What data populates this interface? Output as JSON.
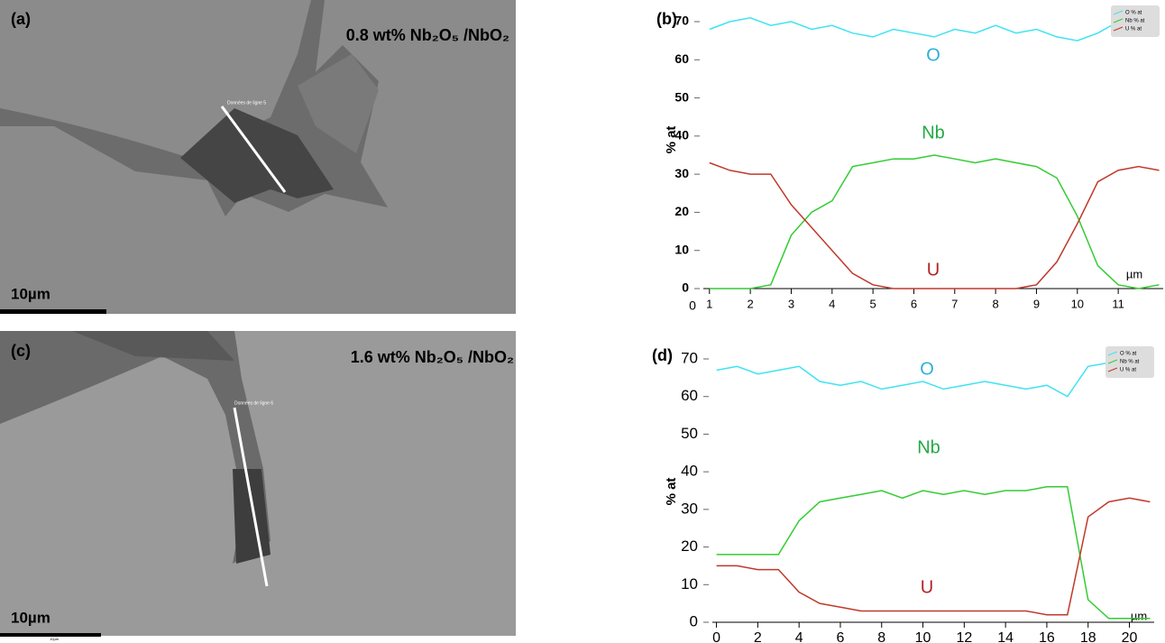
{
  "images": [
    {
      "label": "(a)",
      "title": "0.8 wt% Nb₂O₅ /NbO₂",
      "line_label": "Données de ligne 5",
      "scale": "10µm"
    },
    {
      "label": "(c)",
      "title": "1.6 wt% Nb₂O₅ /NbO₂",
      "line_label": "Données de ligne 6",
      "scale": "10µm",
      "scale_small": "10µm"
    }
  ],
  "chart_data": [
    {
      "type": "line",
      "panel_label": "(b)",
      "ylabel": "% at",
      "x_unit": "µm",
      "origin_label": "0",
      "xlim": [
        0.85,
        12.1
      ],
      "ylim": [
        0,
        70
      ],
      "xticks": [
        1,
        2,
        3,
        4,
        5,
        6,
        7,
        8,
        9,
        10,
        11
      ],
      "yticks": [
        0,
        10,
        20,
        30,
        40,
        50,
        60,
        70
      ],
      "x": [
        1,
        1.5,
        2,
        2.5,
        3,
        3.5,
        4,
        4.5,
        5,
        5.5,
        6,
        6.5,
        7,
        7.5,
        8,
        8.5,
        9,
        9.5,
        10,
        10.5,
        11,
        11.5,
        12
      ],
      "series": [
        {
          "name": "O % at",
          "color": "#3fe3f2",
          "values": [
            68,
            70,
            71,
            69,
            70,
            68,
            69,
            67,
            66,
            68,
            67,
            66,
            68,
            67,
            69,
            67,
            68,
            66,
            65,
            67,
            70,
            71,
            68
          ]
        },
        {
          "name": "Nb % at",
          "color": "#33cc33",
          "values": [
            0,
            0,
            0,
            1,
            14,
            20,
            23,
            32,
            33,
            34,
            34,
            35,
            34,
            33,
            34,
            33,
            32,
            29,
            19,
            6,
            1,
            0,
            1
          ]
        },
        {
          "name": "U % at",
          "color": "#c0392b",
          "values": [
            33,
            31,
            30,
            30,
            22,
            16,
            10,
            4,
            1,
            0,
            0,
            0,
            0,
            0,
            0,
            0,
            1,
            7,
            17,
            28,
            31,
            32,
            31
          ]
        }
      ],
      "annotations": [
        {
          "text": "O",
          "color": "#2ab0d8"
        },
        {
          "text": "Nb",
          "color": "#22aa44"
        },
        {
          "text": "U",
          "color": "#b22222"
        }
      ]
    },
    {
      "type": "line",
      "panel_label": "(d)",
      "ylabel": "% at",
      "x_unit": "µm",
      "xlim": [
        -0.2,
        21.2
      ],
      "ylim": [
        0,
        70
      ],
      "xticks": [
        0,
        2,
        4,
        6,
        8,
        10,
        12,
        14,
        16,
        18,
        20
      ],
      "yticks": [
        0,
        10,
        20,
        30,
        40,
        50,
        60,
        70
      ],
      "x": [
        0,
        1,
        2,
        3,
        4,
        5,
        6,
        7,
        8,
        9,
        10,
        11,
        12,
        13,
        14,
        15,
        16,
        17,
        18,
        19,
        20,
        21
      ],
      "series": [
        {
          "name": "O % at",
          "color": "#3fe3f2",
          "values": [
            67,
            68,
            66,
            67,
            68,
            64,
            63,
            64,
            62,
            63,
            64,
            62,
            63,
            64,
            63,
            62,
            63,
            60,
            68,
            69,
            68,
            69
          ]
        },
        {
          "name": "Nb % at",
          "color": "#33cc33",
          "values": [
            18,
            18,
            18,
            18,
            27,
            32,
            33,
            34,
            35,
            33,
            35,
            34,
            35,
            34,
            35,
            35,
            36,
            36,
            6,
            1,
            1,
            1
          ]
        },
        {
          "name": "U % at",
          "color": "#c0392b",
          "values": [
            15,
            15,
            14,
            14,
            8,
            5,
            4,
            3,
            3,
            3,
            3,
            3,
            3,
            3,
            3,
            3,
            2,
            2,
            28,
            32,
            33,
            32
          ]
        }
      ],
      "annotations": [
        {
          "text": "O",
          "color": "#2ab0d8"
        },
        {
          "text": "Nb",
          "color": "#22aa44"
        },
        {
          "text": "U",
          "color": "#b22222"
        }
      ]
    }
  ]
}
